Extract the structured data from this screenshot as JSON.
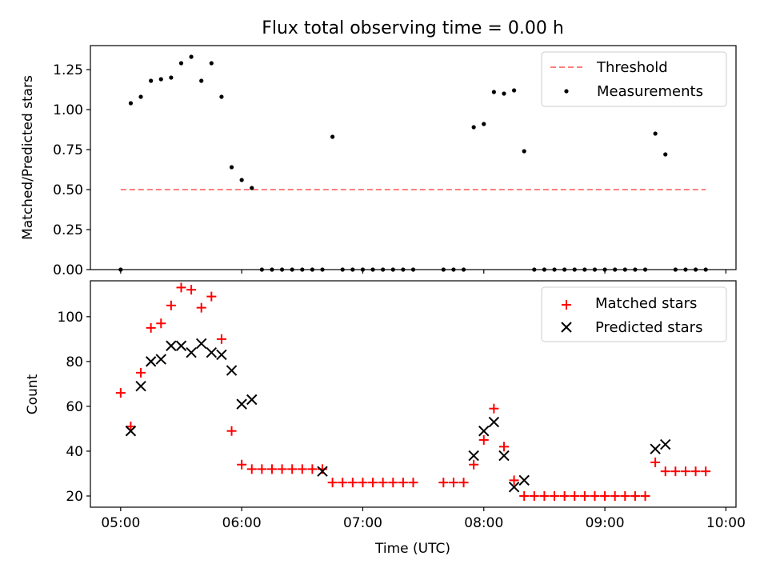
{
  "chart_data": [
    {
      "type": "scatter",
      "title": "Flux total observing time = 0.00 h",
      "xlabel": "",
      "ylabel": "Matched/Predicted stars",
      "ylim": [
        0,
        1.4
      ],
      "yticks": [
        "0.00",
        "0.25",
        "0.50",
        "0.75",
        "1.00",
        "1.25"
      ],
      "ytick_values": [
        0,
        0.25,
        0.5,
        0.75,
        1.0,
        1.25
      ],
      "legend_position": "top-right",
      "grid": false,
      "series": [
        {
          "name": "Threshold",
          "style": "dashed-line",
          "color": "#ff7f7f",
          "x": [
            "05:00",
            "09:50"
          ],
          "values": [
            0.5,
            0.5
          ]
        },
        {
          "name": "Measurements",
          "style": "dot",
          "color": "#000000",
          "x": [
            "05:00",
            "05:05",
            "05:10",
            "05:15",
            "05:20",
            "05:25",
            "05:30",
            "05:35",
            "05:40",
            "05:45",
            "05:50",
            "05:55",
            "06:00",
            "06:05",
            "06:10",
            "06:15",
            "06:20",
            "06:25",
            "06:30",
            "06:35",
            "06:40",
            "06:45",
            "06:50",
            "06:55",
            "07:00",
            "07:05",
            "07:10",
            "07:15",
            "07:20",
            "07:25",
            "07:40",
            "07:45",
            "07:50",
            "07:55",
            "08:00",
            "08:05",
            "08:10",
            "08:15",
            "08:20",
            "08:25",
            "08:30",
            "08:35",
            "08:40",
            "08:45",
            "08:50",
            "08:55",
            "09:00",
            "09:05",
            "09:10",
            "09:15",
            "09:20",
            "09:25",
            "09:30",
            "09:35",
            "09:40",
            "09:45",
            "09:50"
          ],
          "values": [
            0.0,
            1.04,
            1.08,
            1.18,
            1.19,
            1.2,
            1.29,
            1.33,
            1.18,
            1.29,
            1.08,
            0.64,
            0.56,
            0.51,
            0.0,
            0.0,
            0.0,
            0.0,
            0.0,
            0.0,
            0.0,
            0.83,
            0.0,
            0.0,
            0.0,
            0.0,
            0.0,
            0.0,
            0.0,
            0.0,
            0.0,
            0.0,
            0.0,
            0.89,
            0.91,
            1.11,
            1.1,
            1.12,
            0.74,
            0.0,
            0.0,
            0.0,
            0.0,
            0.0,
            0.0,
            0.0,
            0.0,
            0.0,
            0.0,
            0.0,
            0.0,
            0.85,
            0.72,
            0.0,
            0.0,
            0.0,
            0.0
          ]
        }
      ]
    },
    {
      "type": "scatter",
      "title": "",
      "xlabel": "Time (UTC)",
      "ylabel": "Count",
      "ylim": [
        15,
        116
      ],
      "yticks": [
        "20",
        "40",
        "60",
        "80",
        "100"
      ],
      "ytick_values": [
        20,
        40,
        60,
        80,
        100
      ],
      "xlim": [
        "04:45",
        "10:05"
      ],
      "xticks": [
        "05:00",
        "06:00",
        "07:00",
        "08:00",
        "09:00",
        "10:00"
      ],
      "legend_position": "top-right",
      "grid": false,
      "series": [
        {
          "name": "Matched stars",
          "style": "plus",
          "color": "#ff0000",
          "x": [
            "05:00",
            "05:05",
            "05:10",
            "05:15",
            "05:20",
            "05:25",
            "05:30",
            "05:35",
            "05:40",
            "05:45",
            "05:50",
            "05:55",
            "06:00",
            "06:05",
            "06:10",
            "06:15",
            "06:20",
            "06:25",
            "06:30",
            "06:35",
            "06:40",
            "06:45",
            "06:50",
            "06:55",
            "07:00",
            "07:05",
            "07:10",
            "07:15",
            "07:20",
            "07:25",
            "07:40",
            "07:45",
            "07:50",
            "07:55",
            "08:00",
            "08:05",
            "08:10",
            "08:15",
            "08:20",
            "08:25",
            "08:30",
            "08:35",
            "08:40",
            "08:45",
            "08:50",
            "08:55",
            "09:00",
            "09:05",
            "09:10",
            "09:15",
            "09:20",
            "09:25",
            "09:30",
            "09:35",
            "09:40",
            "09:45",
            "09:50"
          ],
          "values": [
            66,
            51,
            75,
            95,
            97,
            105,
            113,
            112,
            104,
            109,
            90,
            49,
            34,
            32,
            32,
            32,
            32,
            32,
            32,
            32,
            32,
            26,
            26,
            26,
            26,
            26,
            26,
            26,
            26,
            26,
            26,
            26,
            26,
            34,
            45,
            59,
            42,
            27,
            20,
            20,
            20,
            20,
            20,
            20,
            20,
            20,
            20,
            20,
            20,
            20,
            20,
            35,
            31,
            31,
            31,
            31,
            31
          ]
        },
        {
          "name": "Predicted stars",
          "style": "x",
          "color": "#000000",
          "x": [
            "05:05",
            "05:10",
            "05:15",
            "05:20",
            "05:25",
            "05:30",
            "05:35",
            "05:40",
            "05:45",
            "05:50",
            "05:55",
            "06:00",
            "06:05",
            "06:40",
            "07:55",
            "08:00",
            "08:05",
            "08:10",
            "08:15",
            "08:20",
            "09:25",
            "09:30"
          ],
          "values": [
            49,
            69,
            80,
            81,
            87,
            87,
            84,
            88,
            84,
            83,
            76,
            61,
            63,
            31,
            38,
            49,
            53,
            38,
            24,
            27,
            41,
            43
          ]
        }
      ]
    }
  ]
}
